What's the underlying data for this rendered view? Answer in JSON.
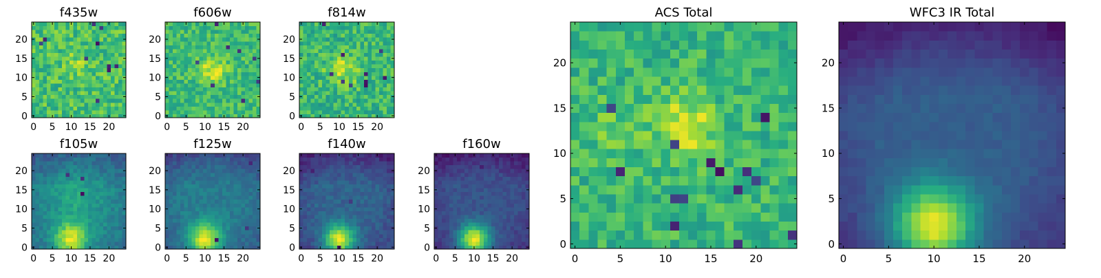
{
  "figure": {
    "background": "#ffffff",
    "colormap": "viridis",
    "colormap_stops": [
      "#440154",
      "#472c7a",
      "#3b518b",
      "#2c718e",
      "#21908d",
      "#27ad81",
      "#5cc863",
      "#aadc32",
      "#fde725"
    ]
  },
  "chart_data": [
    {
      "type": "heatmap",
      "title": "f435w",
      "grid_size": 25,
      "xlim": [
        0,
        24
      ],
      "ylim": [
        0,
        24
      ],
      "xticks": [
        0,
        5,
        10,
        15,
        20
      ],
      "yticks": [
        0,
        5,
        10,
        15,
        20
      ],
      "texture": "noisy",
      "noise": 0.15,
      "base": 0.7,
      "sources": [
        {
          "x": 12,
          "y": 14,
          "amp": 0.12,
          "sigma": 2.5
        }
      ],
      "dark_pixels": 10,
      "seed": 11
    },
    {
      "type": "heatmap",
      "title": "f606w",
      "grid_size": 25,
      "xlim": [
        0,
        24
      ],
      "ylim": [
        0,
        24
      ],
      "xticks": [
        0,
        5,
        10,
        15,
        20
      ],
      "yticks": [
        0,
        5,
        10,
        15,
        20
      ],
      "texture": "noisy",
      "noise": 0.13,
      "base": 0.68,
      "sources": [
        {
          "x": 12,
          "y": 12,
          "amp": 0.25,
          "sigma": 2.5
        }
      ],
      "dark_pixels": 8,
      "seed": 22
    },
    {
      "type": "heatmap",
      "title": "f814w",
      "grid_size": 25,
      "xlim": [
        0,
        24
      ],
      "ylim": [
        0,
        24
      ],
      "xticks": [
        0,
        5,
        10,
        15,
        20
      ],
      "yticks": [
        0,
        5,
        10,
        15,
        20
      ],
      "texture": "noisy",
      "noise": 0.15,
      "base": 0.66,
      "sources": [
        {
          "x": 11,
          "y": 12,
          "amp": 0.22,
          "sigma": 3
        }
      ],
      "dark_pixels": 10,
      "seed": 33
    },
    {
      "type": "heatmap",
      "title": "f105w",
      "grid_size": 25,
      "xlim": [
        0,
        24
      ],
      "ylim": [
        0,
        24
      ],
      "xticks": [
        0,
        5,
        10,
        15,
        20
      ],
      "yticks": [
        0,
        5,
        10,
        15,
        20
      ],
      "texture": "smooth",
      "noise": 0.07,
      "base": 0.48,
      "sources": [
        {
          "x": 10,
          "y": 2,
          "amp": 0.52,
          "sigma": 3
        },
        {
          "x": 11,
          "y": 13,
          "amp": 0.12,
          "sigma": 4
        }
      ],
      "corner_dark": 0.2,
      "dark_pixels": 3,
      "seed": 44
    },
    {
      "type": "heatmap",
      "title": "f125w",
      "grid_size": 25,
      "xlim": [
        0,
        24
      ],
      "ylim": [
        0,
        24
      ],
      "xticks": [
        0,
        5,
        10,
        15,
        20
      ],
      "yticks": [
        0,
        5,
        10,
        15,
        20
      ],
      "texture": "smooth",
      "noise": 0.06,
      "base": 0.42,
      "sources": [
        {
          "x": 10,
          "y": 2,
          "amp": 0.58,
          "sigma": 3
        }
      ],
      "corner_dark": 0.22,
      "dark_pixels": 3,
      "seed": 55
    },
    {
      "type": "heatmap",
      "title": "f140w",
      "grid_size": 25,
      "xlim": [
        0,
        24
      ],
      "ylim": [
        0,
        24
      ],
      "xticks": [
        0,
        5,
        10,
        15,
        20
      ],
      "yticks": [
        0,
        5,
        10,
        15,
        20
      ],
      "texture": "smooth",
      "noise": 0.06,
      "base": 0.32,
      "sources": [
        {
          "x": 10,
          "y": 2,
          "amp": 0.68,
          "sigma": 2.8
        }
      ],
      "corner_dark": 0.22,
      "dark_pixels": 3,
      "seed": 66
    },
    {
      "type": "heatmap",
      "title": "f160w",
      "grid_size": 25,
      "xlim": [
        0,
        24
      ],
      "ylim": [
        0,
        24
      ],
      "xticks": [
        0,
        5,
        10,
        15,
        20
      ],
      "yticks": [
        0,
        5,
        10,
        15,
        20
      ],
      "texture": "smooth",
      "noise": 0.05,
      "base": 0.26,
      "sources": [
        {
          "x": 10,
          "y": 2,
          "amp": 0.74,
          "sigma": 2.8
        }
      ],
      "corner_dark": 0.2,
      "dark_pixels": 3,
      "seed": 77
    },
    {
      "type": "heatmap",
      "title": "ACS Total",
      "grid_size": 25,
      "xlim": [
        0,
        24
      ],
      "ylim": [
        0,
        24
      ],
      "xticks": [
        0,
        5,
        10,
        15,
        20
      ],
      "yticks": [
        0,
        5,
        10,
        15,
        20
      ],
      "texture": "noisy",
      "noise": 0.13,
      "base": 0.66,
      "sources": [
        {
          "x": 12,
          "y": 13,
          "amp": 0.3,
          "sigma": 2.3
        },
        {
          "x": 4,
          "y": 13,
          "amp": 0.1,
          "sigma": 2
        }
      ],
      "dark_pixels": 14,
      "seed": 88
    },
    {
      "type": "heatmap",
      "title": "WFC3 IR Total",
      "grid_size": 25,
      "xlim": [
        0,
        24
      ],
      "ylim": [
        0,
        24
      ],
      "xticks": [
        0,
        5,
        10,
        15,
        20
      ],
      "yticks": [
        0,
        5,
        10,
        15,
        20
      ],
      "texture": "smooth",
      "noise": 0.03,
      "base": 0.3,
      "sources": [
        {
          "x": 10,
          "y": 2,
          "amp": 0.7,
          "sigma": 3.2
        }
      ],
      "corner_dark": 0.25,
      "dark_pixels": 0,
      "seed": 99
    }
  ]
}
